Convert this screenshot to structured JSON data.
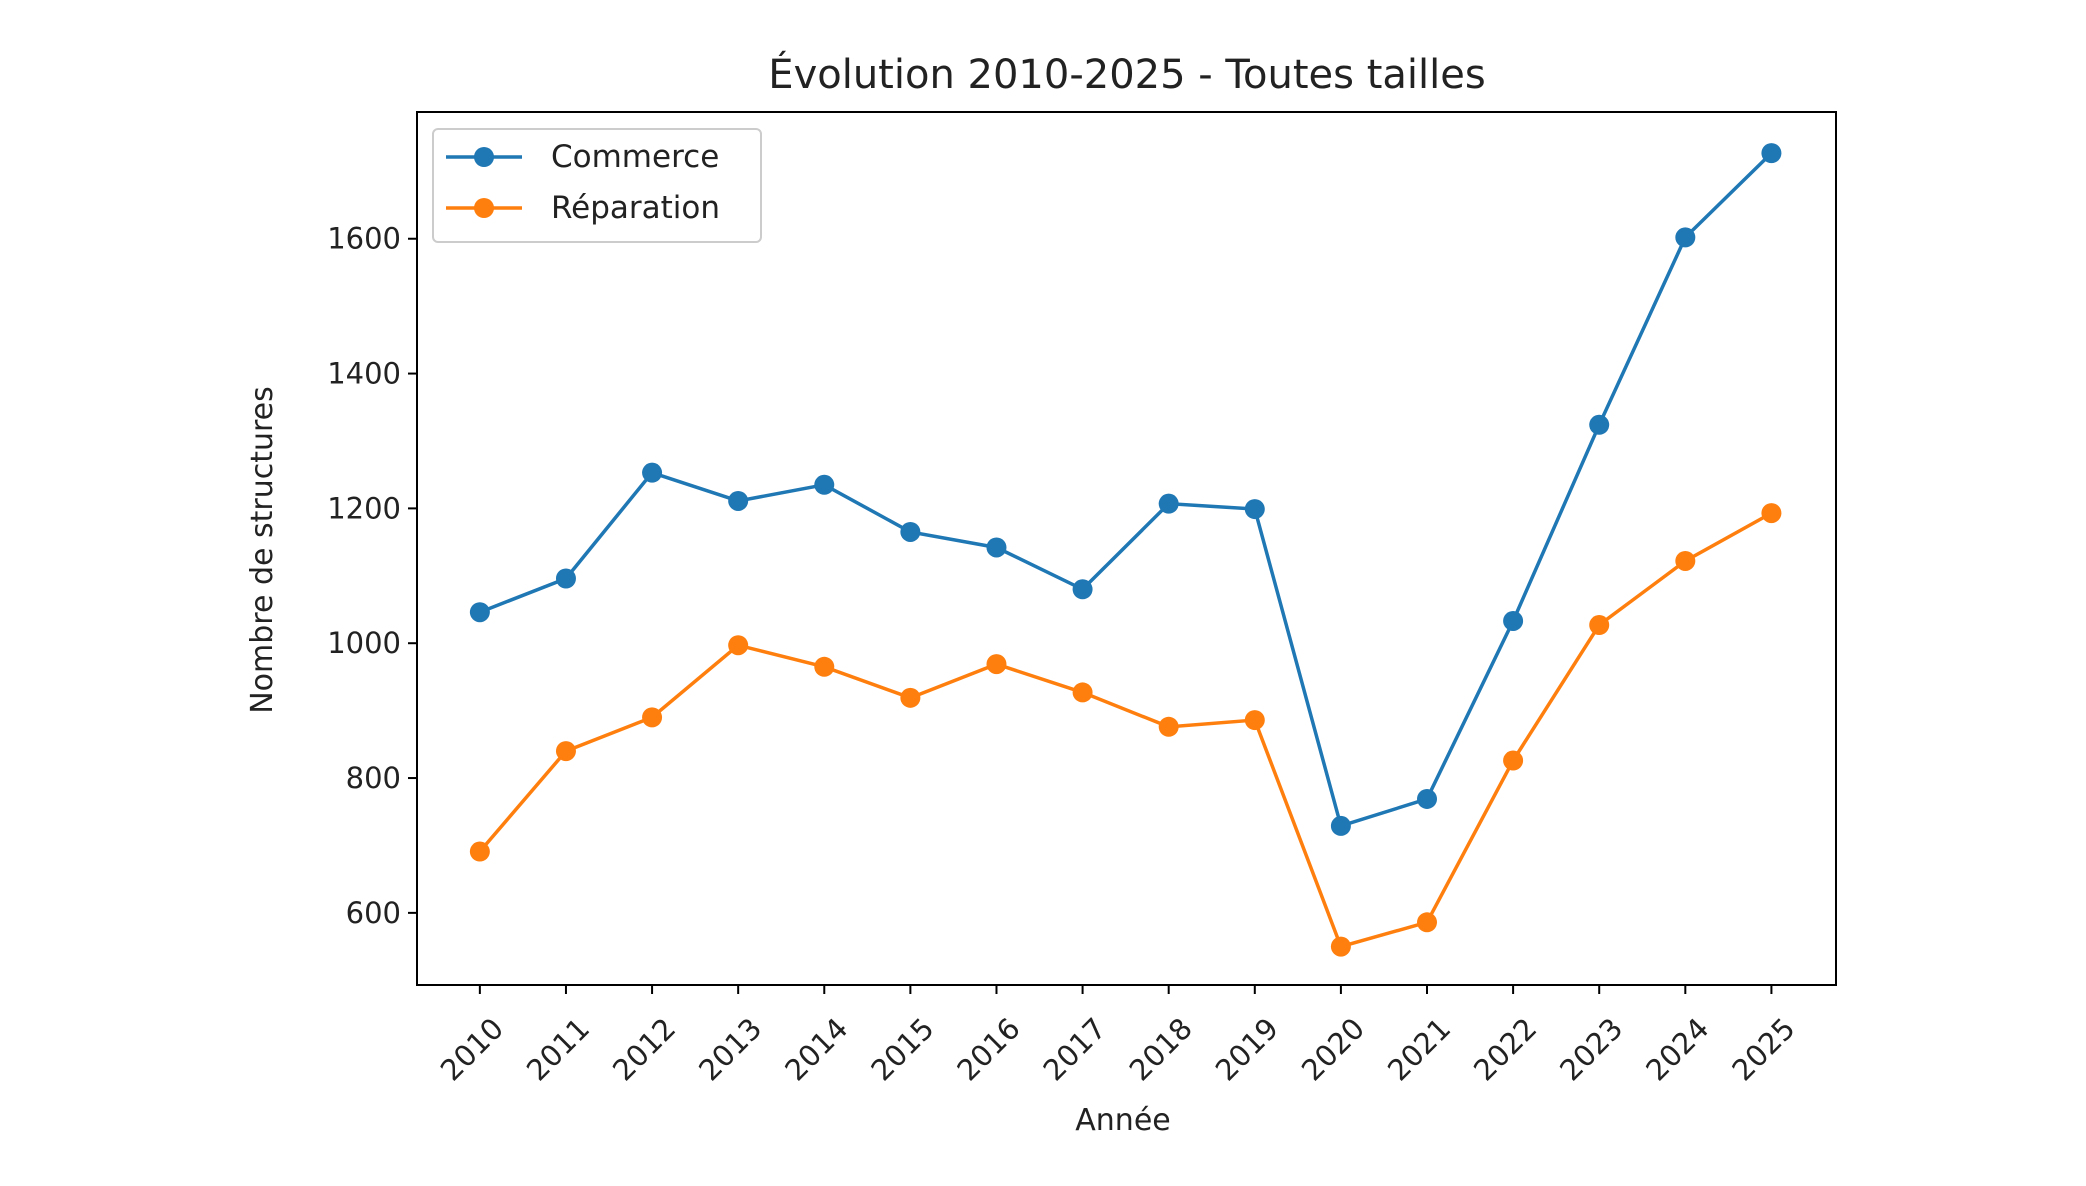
{
  "chart_data": {
    "type": "line",
    "title": "Évolution 2010-2025 - Toutes tailles",
    "xlabel": "Année",
    "ylabel": "Nombre de structures",
    "x": [
      2010,
      2011,
      2012,
      2013,
      2014,
      2015,
      2016,
      2017,
      2018,
      2019,
      2020,
      2021,
      2022,
      2023,
      2024,
      2025
    ],
    "x_tick_labels": [
      "2010",
      "2011",
      "2012",
      "2013",
      "2014",
      "2015",
      "2016",
      "2017",
      "2018",
      "2019",
      "2020",
      "2021",
      "2022",
      "2023",
      "2024",
      "2025"
    ],
    "y_ticks": [
      600,
      800,
      1000,
      1200,
      1400,
      1600
    ],
    "y_tick_labels": [
      "600",
      "800",
      "1000",
      "1200",
      "1400",
      "1600"
    ],
    "xlim": [
      2009.27,
      2025.75
    ],
    "ylim": [
      493,
      1788
    ],
    "grid": false,
    "legend_position": "top-left",
    "series": [
      {
        "name": "Commerce",
        "color": "#1f77b4",
        "marker": "circle",
        "values": [
          1046,
          1096,
          1253,
          1211,
          1235,
          1165,
          1142,
          1080,
          1207,
          1199,
          729,
          769,
          1033,
          1324,
          1602,
          1727
        ]
      },
      {
        "name": "Réparation",
        "color": "#ff7f0e",
        "marker": "circle",
        "values": [
          691,
          840,
          890,
          997,
          965,
          919,
          969,
          927,
          876,
          886,
          550,
          586,
          826,
          1027,
          1122,
          1193
        ]
      }
    ]
  }
}
